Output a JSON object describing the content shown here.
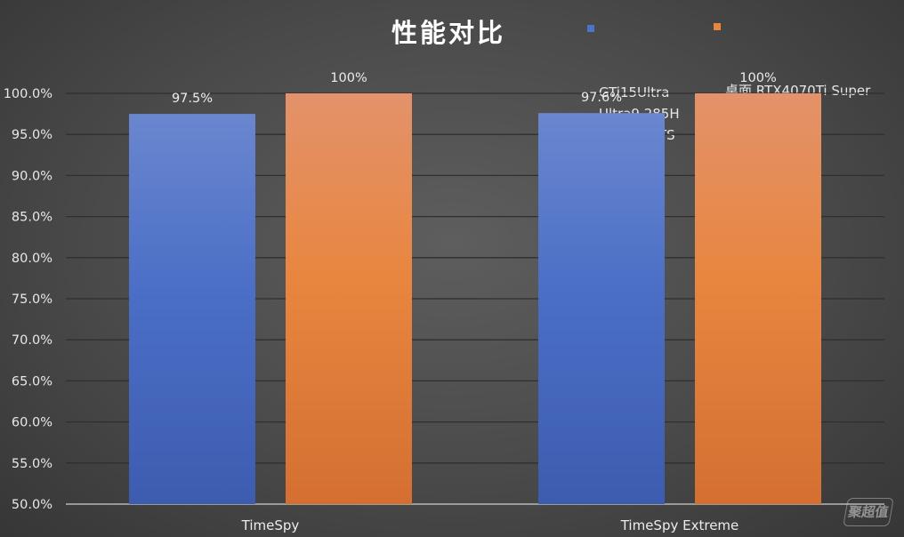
{
  "chart_data": {
    "type": "bar",
    "title": "性能对比",
    "categories": [
      "TimeSpy",
      "TimeSpy Extreme"
    ],
    "series": [
      {
        "name": "GTi15Ultra\nUltra9 285H\nRTX4070TS",
        "values": [
          97.5,
          97.6
        ],
        "labels": [
          "97.5%",
          "97.6%"
        ],
        "color": "#4f72c9"
      },
      {
        "name": "桌面 RTX4070Ti Super",
        "values": [
          100,
          100
        ],
        "labels": [
          "100%",
          "100%"
        ],
        "color": "#e88640"
      }
    ],
    "ylim": [
      50,
      100
    ],
    "yticks": [
      50,
      55,
      60,
      65,
      70,
      75,
      80,
      85,
      90,
      95,
      100
    ],
    "ytick_labels": [
      "50.0%",
      "55.0%",
      "60.0%",
      "65.0%",
      "70.0%",
      "75.0%",
      "80.0%",
      "85.0%",
      "90.0%",
      "95.0%",
      "100.0%"
    ],
    "xlabel": "",
    "ylabel": "",
    "grid": true,
    "legend_position": "top-right"
  },
  "watermark": "聚超值"
}
